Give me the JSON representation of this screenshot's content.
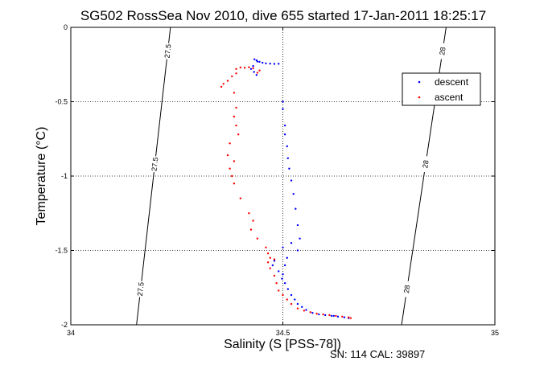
{
  "chart_data": {
    "type": "scatter",
    "title": "SG502 RossSea Nov 2010, dive 655 started 17-Jan-2011 18:25:17",
    "xlabel": "Salinity (S [PSS-78])",
    "ylabel": "Temperature (°C)",
    "xlim": [
      34,
      35
    ],
    "ylim": [
      -2,
      0
    ],
    "x_ticks": [
      "34",
      "34.5",
      "35"
    ],
    "y_ticks": [
      "0",
      "-0.5",
      "-1",
      "-1.5",
      "-2"
    ],
    "grid": "dotted",
    "legend_position": "top-right",
    "series": [
      {
        "name": "descent",
        "color": "#0000ff",
        "points": [
          [
            34.433,
            -0.215
          ],
          [
            34.438,
            -0.222
          ],
          [
            34.445,
            -0.232
          ],
          [
            34.452,
            -0.238
          ],
          [
            34.46,
            -0.242
          ],
          [
            34.47,
            -0.244
          ],
          [
            34.48,
            -0.246
          ],
          [
            34.49,
            -0.245
          ],
          [
            34.44,
            -0.23
          ],
          [
            34.43,
            -0.26
          ],
          [
            34.425,
            -0.28
          ],
          [
            34.432,
            -0.3
          ],
          [
            34.438,
            -0.32
          ],
          [
            34.5,
            -0.5
          ],
          [
            34.5,
            -0.55
          ],
          [
            34.505,
            -0.66
          ],
          [
            34.505,
            -0.72
          ],
          [
            34.51,
            -0.8
          ],
          [
            34.512,
            -0.88
          ],
          [
            34.515,
            -0.95
          ],
          [
            34.52,
            -1.03
          ],
          [
            34.525,
            -1.12
          ],
          [
            34.53,
            -1.22
          ],
          [
            34.535,
            -1.33
          ],
          [
            34.54,
            -1.42
          ],
          [
            34.535,
            -1.5
          ],
          [
            34.52,
            -1.45
          ],
          [
            34.51,
            -1.55
          ],
          [
            34.505,
            -1.6
          ],
          [
            34.5,
            -1.48
          ],
          [
            34.48,
            -1.57
          ],
          [
            34.476,
            -1.6
          ],
          [
            34.49,
            -1.64
          ],
          [
            34.5,
            -1.66
          ],
          [
            34.498,
            -1.69
          ],
          [
            34.505,
            -1.72
          ],
          [
            34.512,
            -1.76
          ],
          [
            34.52,
            -1.8
          ],
          [
            34.528,
            -1.83
          ],
          [
            34.535,
            -1.86
          ],
          [
            34.545,
            -1.88
          ],
          [
            34.555,
            -1.9
          ],
          [
            34.57,
            -1.92
          ],
          [
            34.585,
            -1.93
          ],
          [
            34.6,
            -1.935
          ],
          [
            34.615,
            -1.94
          ],
          [
            34.63,
            -1.945
          ],
          [
            34.645,
            -1.95
          ],
          [
            34.655,
            -1.955
          ],
          [
            34.62,
            -1.94
          ]
        ]
      },
      {
        "name": "ascent",
        "color": "#ff0000",
        "points": [
          [
            34.43,
            -0.275
          ],
          [
            34.42,
            -0.268
          ],
          [
            34.41,
            -0.272
          ],
          [
            34.4,
            -0.27
          ],
          [
            34.39,
            -0.28
          ],
          [
            34.445,
            -0.29
          ],
          [
            34.44,
            -0.305
          ],
          [
            34.39,
            -0.31
          ],
          [
            34.38,
            -0.33
          ],
          [
            34.37,
            -0.36
          ],
          [
            34.36,
            -0.38
          ],
          [
            34.355,
            -0.4
          ],
          [
            34.385,
            -0.44
          ],
          [
            34.39,
            -0.54
          ],
          [
            34.385,
            -0.6
          ],
          [
            34.39,
            -0.66
          ],
          [
            34.395,
            -0.72
          ],
          [
            34.375,
            -0.78
          ],
          [
            34.37,
            -0.86
          ],
          [
            34.385,
            -0.9
          ],
          [
            34.375,
            -0.95
          ],
          [
            34.38,
            -1.0
          ],
          [
            34.385,
            -1.05
          ],
          [
            34.4,
            -1.15
          ],
          [
            34.42,
            -1.25
          ],
          [
            34.43,
            -1.3
          ],
          [
            34.425,
            -1.36
          ],
          [
            34.44,
            -1.42
          ],
          [
            34.46,
            -1.48
          ],
          [
            34.465,
            -1.52
          ],
          [
            34.47,
            -1.55
          ],
          [
            34.48,
            -1.56
          ],
          [
            34.465,
            -1.58
          ],
          [
            34.47,
            -1.62
          ],
          [
            34.48,
            -1.67
          ],
          [
            34.485,
            -1.72
          ],
          [
            34.49,
            -1.77
          ],
          [
            34.5,
            -1.8
          ],
          [
            34.51,
            -1.83
          ],
          [
            34.52,
            -1.86
          ],
          [
            34.535,
            -1.89
          ],
          [
            34.55,
            -1.905
          ],
          [
            34.565,
            -1.915
          ],
          [
            34.58,
            -1.925
          ],
          [
            34.595,
            -1.93
          ],
          [
            34.61,
            -1.935
          ],
          [
            34.625,
            -1.94
          ],
          [
            34.64,
            -1.945
          ],
          [
            34.655,
            -1.95
          ],
          [
            34.66,
            -1.955
          ]
        ]
      }
    ],
    "density_contours": [
      {
        "label": "27.5",
        "s_at_t0": 34.235,
        "s_at_tm2": 34.155
      },
      {
        "label": "28",
        "s_at_t0": 34.885,
        "s_at_tm2": 34.78
      }
    ],
    "footer": "SN: 114  CAL: 39897"
  }
}
